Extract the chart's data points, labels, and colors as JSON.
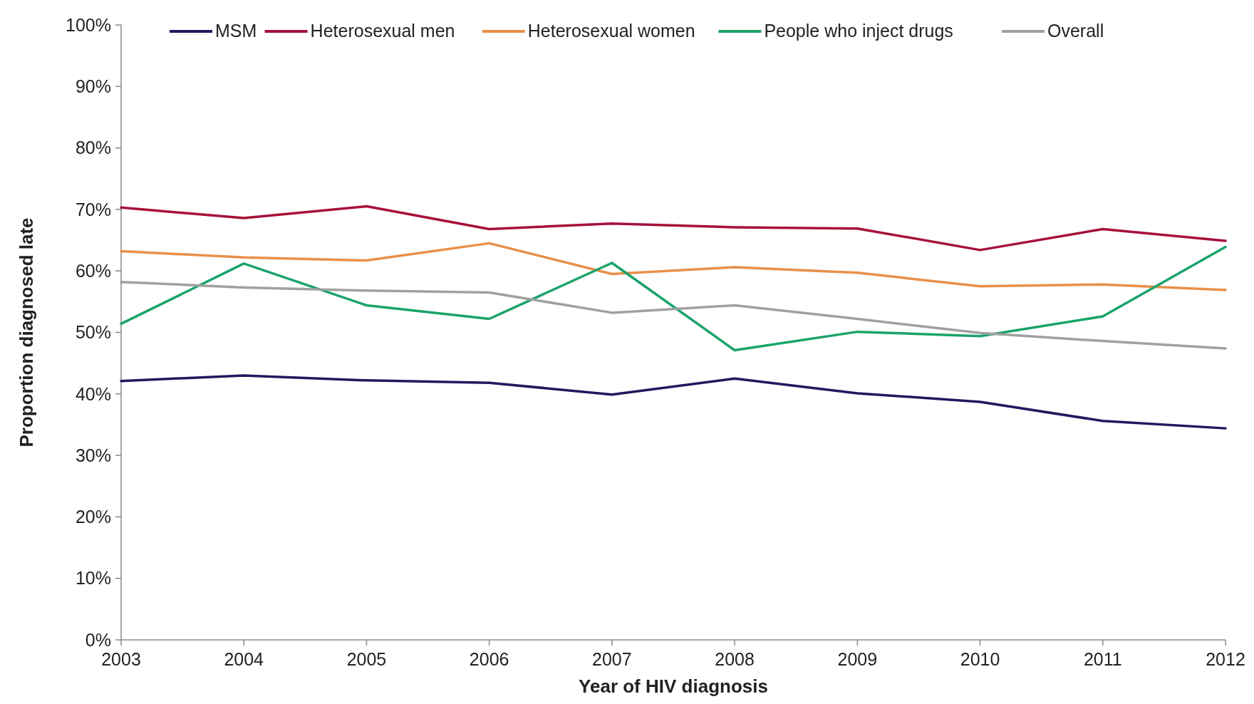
{
  "chart_data": {
    "type": "line",
    "xlabel": "Year of HIV diagnosis",
    "ylabel": "Proportion diagnosed late",
    "categories": [
      "2003",
      "2004",
      "2005",
      "2006",
      "2007",
      "2008",
      "2009",
      "2010",
      "2011",
      "2012"
    ],
    "series": [
      {
        "name": "MSM",
        "color": "#1f1a5e",
        "values": [
          42.1,
          43.0,
          42.2,
          41.8,
          39.9,
          42.5,
          40.1,
          38.7,
          35.6,
          34.4
        ]
      },
      {
        "name": "Heterosexual men",
        "color": "#a6113a",
        "values": [
          70.3,
          68.6,
          70.5,
          66.8,
          67.7,
          67.1,
          66.9,
          63.4,
          66.8,
          64.9
        ]
      },
      {
        "name": "Heterosexual women",
        "color": "#e8904a",
        "values": [
          63.2,
          62.2,
          61.7,
          64.5,
          59.5,
          60.6,
          59.7,
          57.5,
          57.8,
          56.9
        ]
      },
      {
        "name": "People who inject drugs",
        "color": "#1aa36a",
        "values": [
          51.4,
          61.2,
          54.4,
          52.2,
          61.3,
          47.1,
          50.1,
          49.4,
          52.6,
          63.9
        ]
      },
      {
        "name": "Overall",
        "color": "#a0a0a0",
        "values": [
          58.2,
          57.3,
          56.8,
          56.5,
          53.2,
          54.4,
          52.2,
          49.9,
          48.6,
          47.4
        ]
      }
    ],
    "ylim": [
      0,
      100
    ],
    "yticks": [
      {
        "value": 0,
        "label": "0%"
      },
      {
        "value": 10,
        "label": "10%"
      },
      {
        "value": 20,
        "label": "20%"
      },
      {
        "value": 30,
        "label": "30%"
      },
      {
        "value": 40,
        "label": "40%"
      },
      {
        "value": 50,
        "label": "50%"
      },
      {
        "value": 60,
        "label": "60%"
      },
      {
        "value": 70,
        "label": "70%"
      },
      {
        "value": 80,
        "label": "80%"
      },
      {
        "value": 90,
        "label": "90%"
      },
      {
        "value": 100,
        "label": "100%"
      }
    ],
    "legend": "top",
    "grid": false,
    "marker": "none",
    "line_style": "solid"
  }
}
